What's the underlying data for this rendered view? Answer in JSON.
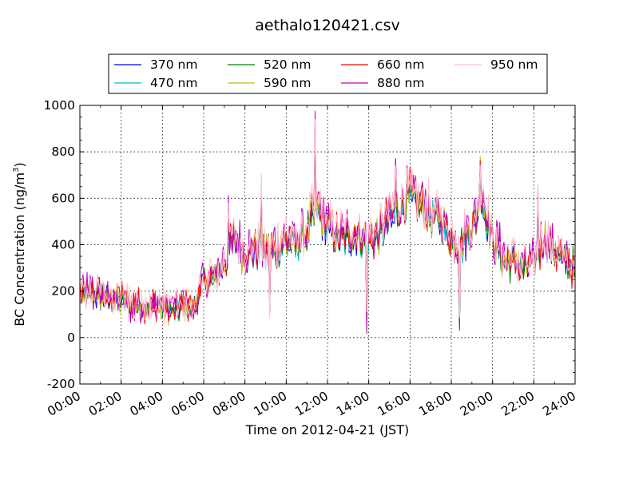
{
  "chart_data": {
    "type": "line",
    "title": "aethalo120421.csv",
    "xlabel": "Time on 2012-04-21 (JST)",
    "ylabel": "BC Concentration (ng/m³)",
    "ylabel_parts": {
      "main": "BC Concentration (ng/m",
      "sup": "3",
      "close": ")"
    },
    "xlim": [
      "00:00",
      "24:00"
    ],
    "ylim": [
      -200,
      1000
    ],
    "xticks": [
      "00:00",
      "02:00",
      "04:00",
      "06:00",
      "08:00",
      "10:00",
      "12:00",
      "14:00",
      "16:00",
      "18:00",
      "20:00",
      "22:00",
      "24:00"
    ],
    "yticks": [
      -200,
      0,
      200,
      400,
      600,
      800,
      1000
    ],
    "grid": true,
    "legend_position": "top, above plot",
    "series": [
      {
        "name": "370 nm",
        "color": "#0000ff"
      },
      {
        "name": "470 nm",
        "color": "#00bfbf"
      },
      {
        "name": "520 nm",
        "color": "#008000"
      },
      {
        "name": "590 nm",
        "color": "#bfbf00"
      },
      {
        "name": "660 nm",
        "color": "#ff0000"
      },
      {
        "name": "880 nm",
        "color": "#bf00bf"
      },
      {
        "name": "950 nm",
        "color": "#ffc0cb"
      }
    ],
    "baseline_profile": {
      "x_hours": [
        0,
        0.5,
        1,
        1.5,
        2,
        2.5,
        3,
        3.5,
        4,
        4.5,
        5,
        5.5,
        6,
        6.5,
        7,
        7.5,
        8,
        8.5,
        9,
        9.5,
        10,
        10.5,
        11,
        11.5,
        12,
        12.5,
        13,
        13.5,
        14,
        14.5,
        15,
        15.5,
        16,
        16.5,
        17,
        17.5,
        18,
        18.5,
        19,
        19.5,
        20,
        20.5,
        21,
        21.5,
        22,
        22.5,
        23,
        23.5,
        24
      ],
      "y_ngm3": [
        180,
        190,
        180,
        170,
        160,
        140,
        135,
        140,
        130,
        120,
        140,
        120,
        240,
        260,
        320,
        420,
        360,
        380,
        370,
        380,
        420,
        400,
        460,
        560,
        470,
        430,
        440,
        450,
        420,
        440,
        520,
        560,
        620,
        580,
        530,
        500,
        420,
        400,
        470,
        600,
        420,
        340,
        330,
        300,
        320,
        430,
        380,
        330,
        300
      ]
    },
    "spikes": [
      {
        "x_hours": 7.2,
        "y_ngm3": 540
      },
      {
        "x_hours": 8.8,
        "y_ngm3": 640
      },
      {
        "x_hours": 9.2,
        "y_ngm3": 90
      },
      {
        "x_hours": 11.4,
        "y_ngm3": 890
      },
      {
        "x_hours": 13.9,
        "y_ngm3": 60
      },
      {
        "x_hours": 15.3,
        "y_ngm3": 730
      },
      {
        "x_hours": 18.4,
        "y_ngm3": 50
      },
      {
        "x_hours": 19.4,
        "y_ngm3": 740
      },
      {
        "x_hours": 22.2,
        "y_ngm3": 580
      }
    ]
  }
}
